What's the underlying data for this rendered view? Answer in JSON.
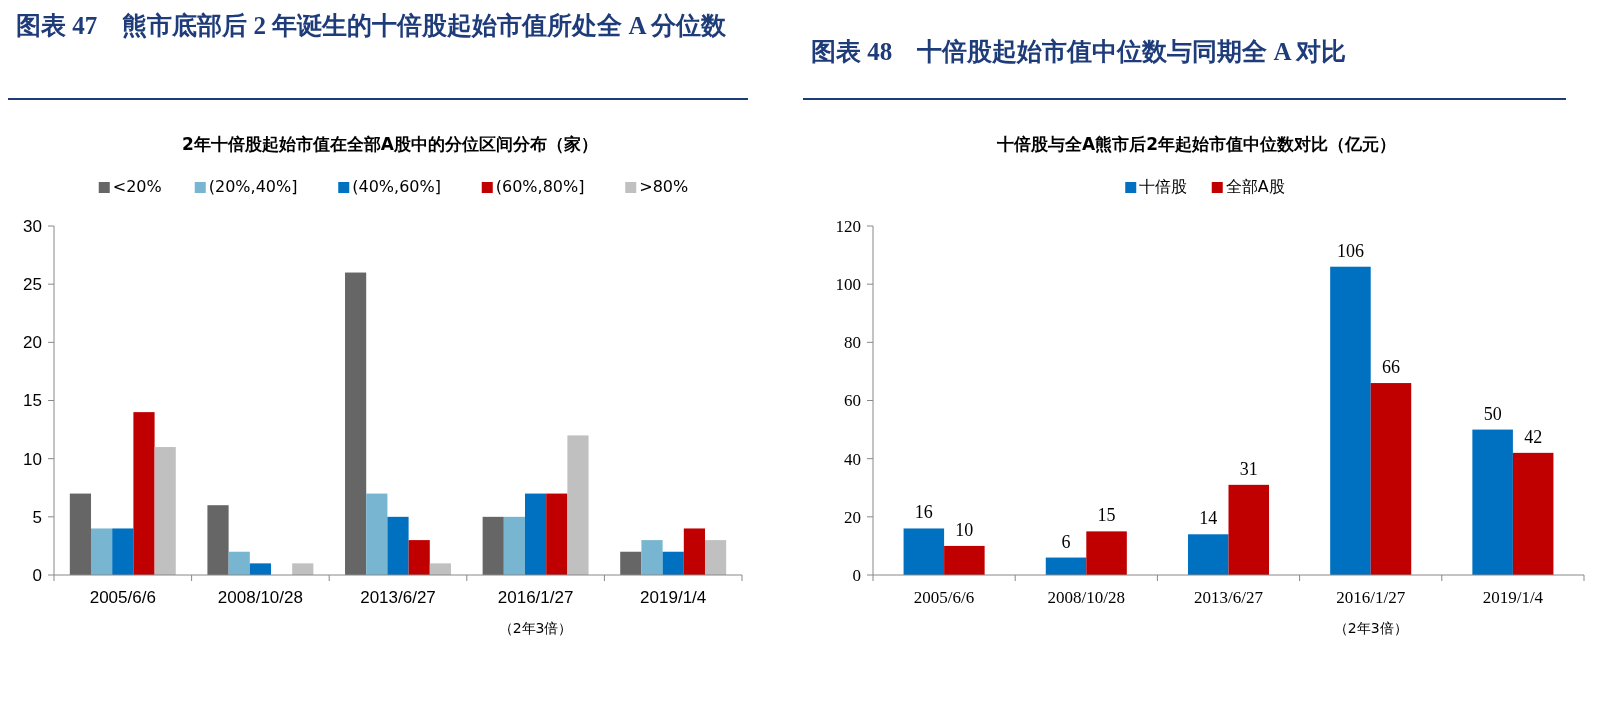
{
  "chart_data": [
    {
      "type": "bar",
      "title": "图表 47　熊市底部后 2 年诞生的十倍股起始市值所处全 A 分位数",
      "subtitle": "2年十倍股起始市值在全部A股中的分位区间分布（家）",
      "categories": [
        "2005/6/6",
        "2008/10/28",
        "2013/6/27",
        "2016/1/27",
        "2019/1/4"
      ],
      "series": [
        {
          "name": "<20%",
          "color": "#666666",
          "values": [
            7,
            6,
            26,
            5,
            2
          ]
        },
        {
          "name": "(20%,40%]",
          "color": "#77b5d1",
          "values": [
            4,
            2,
            7,
            5,
            3
          ]
        },
        {
          "name": "(40%,60%]",
          "color": "#0070c0",
          "values": [
            4,
            1,
            5,
            7,
            2
          ]
        },
        {
          "name": "(60%,80%]",
          "color": "#c00000",
          "values": [
            14,
            0,
            3,
            7,
            4
          ]
        },
        {
          "name": ">80%",
          "color": "#c0c0c0",
          "values": [
            11,
            1,
            1,
            12,
            3
          ]
        }
      ],
      "ylim": [
        0,
        30
      ],
      "yticks": [
        0,
        5,
        10,
        15,
        20,
        25,
        30
      ],
      "legend": "top",
      "annotations": [
        "（2年3倍）"
      ]
    },
    {
      "type": "bar",
      "title": "图表 48　十倍股起始市值中位数与同期全 A 对比",
      "subtitle": "十倍股与全A熊市后2年起始市值中位数对比（亿元）",
      "categories": [
        "2005/6/6",
        "2008/10/28",
        "2013/6/27",
        "2016/1/27",
        "2019/1/4"
      ],
      "series": [
        {
          "name": "十倍股",
          "color": "#0070c0",
          "values": [
            16,
            6,
            14,
            106,
            50
          ]
        },
        {
          "name": "全部A股",
          "color": "#c00000",
          "values": [
            10,
            15,
            31,
            66,
            42
          ]
        }
      ],
      "ylim": [
        0,
        120
      ],
      "yticks": [
        0,
        20,
        40,
        60,
        80,
        100,
        120
      ],
      "legend": "top",
      "data_labels": true,
      "annotations": [
        "（2年3倍）"
      ]
    }
  ]
}
